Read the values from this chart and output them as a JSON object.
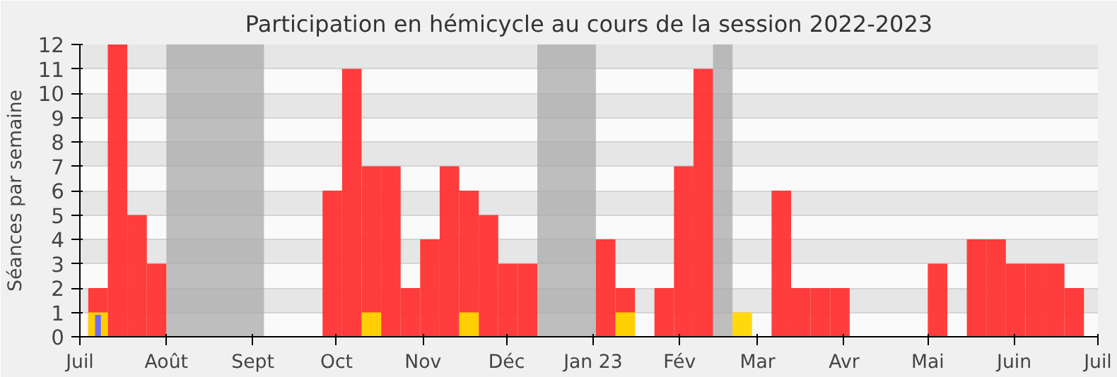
{
  "chart_data": {
    "type": "bar",
    "title": "Participation en hémicycle au cours de la session 2022-2023",
    "ylabel": "Séances par semaine",
    "x": [
      "2022-07-04",
      "2022-07-11",
      "2022-07-18",
      "2022-07-25",
      "2022-08-01",
      "2022-08-08",
      "2022-08-15",
      "2022-08-22",
      "2022-08-29",
      "2022-09-05",
      "2022-09-12",
      "2022-09-19",
      "2022-09-26",
      "2022-10-03",
      "2022-10-10",
      "2022-10-17",
      "2022-10-24",
      "2022-10-31",
      "2022-11-07",
      "2022-11-14",
      "2022-11-21",
      "2022-11-28",
      "2022-12-05",
      "2022-12-12",
      "2022-12-19",
      "2022-12-26",
      "2023-01-02",
      "2023-01-09",
      "2023-01-16",
      "2023-01-23",
      "2023-01-30",
      "2023-02-06",
      "2023-02-13",
      "2023-02-20",
      "2023-02-27",
      "2023-03-06",
      "2023-03-13",
      "2023-03-20",
      "2023-03-27",
      "2023-04-03",
      "2023-04-10",
      "2023-04-17",
      "2023-04-24",
      "2023-05-01",
      "2023-05-08",
      "2023-05-15",
      "2023-05-22",
      "2023-05-29",
      "2023-06-05",
      "2023-06-12",
      "2023-06-19"
    ],
    "series": [
      {
        "color": "#ff3333",
        "values": [
          2,
          12,
          5,
          3,
          null,
          null,
          null,
          null,
          null,
          null,
          null,
          null,
          6,
          11,
          7,
          7,
          2,
          4,
          7,
          6,
          5,
          3,
          3,
          null,
          null,
          null,
          4,
          2,
          null,
          2,
          7,
          11,
          null,
          null,
          null,
          6,
          2,
          2,
          2,
          null,
          null,
          null,
          null,
          3,
          null,
          4,
          4,
          3,
          3,
          3,
          2
        ]
      },
      {
        "color": "#ffd700",
        "values": [
          1,
          null,
          null,
          null,
          null,
          null,
          null,
          null,
          null,
          null,
          null,
          null,
          null,
          null,
          1,
          null,
          null,
          null,
          null,
          1,
          null,
          null,
          null,
          null,
          null,
          null,
          null,
          1,
          null,
          null,
          null,
          null,
          null,
          1,
          null,
          null,
          null,
          null,
          null,
          null,
          null,
          null,
          null,
          null,
          null,
          null,
          null,
          null,
          null,
          null,
          null
        ]
      },
      {
        "color": "#6666ff",
        "values": [
          0.9,
          null,
          null,
          null,
          null,
          null,
          null,
          null,
          null,
          null,
          null,
          null,
          null,
          null,
          null,
          null,
          null,
          null,
          null,
          null,
          null,
          null,
          null,
          null,
          null,
          null,
          null,
          null,
          null,
          null,
          null,
          null,
          null,
          null,
          null,
          null,
          null,
          null,
          null,
          null,
          null,
          null,
          null,
          null,
          null,
          null,
          null,
          null,
          null,
          null,
          null
        ]
      }
    ],
    "bands": [
      {
        "axis": "x",
        "from": "2022-08-01",
        "to": "2022-09-05",
        "color": "#aaaaaa"
      },
      {
        "axis": "x",
        "from": "2022-12-12",
        "to": "2023-01-02",
        "color": "#aaaaaa"
      },
      {
        "axis": "x",
        "from": "2023-02-13",
        "to": "2023-02-20",
        "color": "#aaaaaa"
      }
    ],
    "xlim": [
      "2022-07-01",
      "2023-07-01"
    ],
    "xticks": [
      {
        "value": "2022-07-01",
        "label": "Juil"
      },
      {
        "value": "2022-08-01",
        "label": "Août"
      },
      {
        "value": "2022-09-01",
        "label": "Sept"
      },
      {
        "value": "2022-10-01",
        "label": "Oct"
      },
      {
        "value": "2022-11-01",
        "label": "Nov"
      },
      {
        "value": "2022-12-01",
        "label": "Déc"
      },
      {
        "value": "2023-01-01",
        "label": "Jan 23"
      },
      {
        "value": "2023-02-01",
        "label": "Fév"
      },
      {
        "value": "2023-03-01",
        "label": "Mar"
      },
      {
        "value": "2023-04-01",
        "label": "Avr"
      },
      {
        "value": "2023-05-01",
        "label": "Mai"
      },
      {
        "value": "2023-06-01",
        "label": "Juin"
      },
      {
        "value": "2023-07-01",
        "label": "Juil"
      }
    ],
    "ylim": [
      0,
      12
    ],
    "yticks": [
      0,
      1,
      2,
      3,
      4,
      5,
      6,
      7,
      8,
      9,
      10,
      11,
      12
    ],
    "grid": "y"
  }
}
